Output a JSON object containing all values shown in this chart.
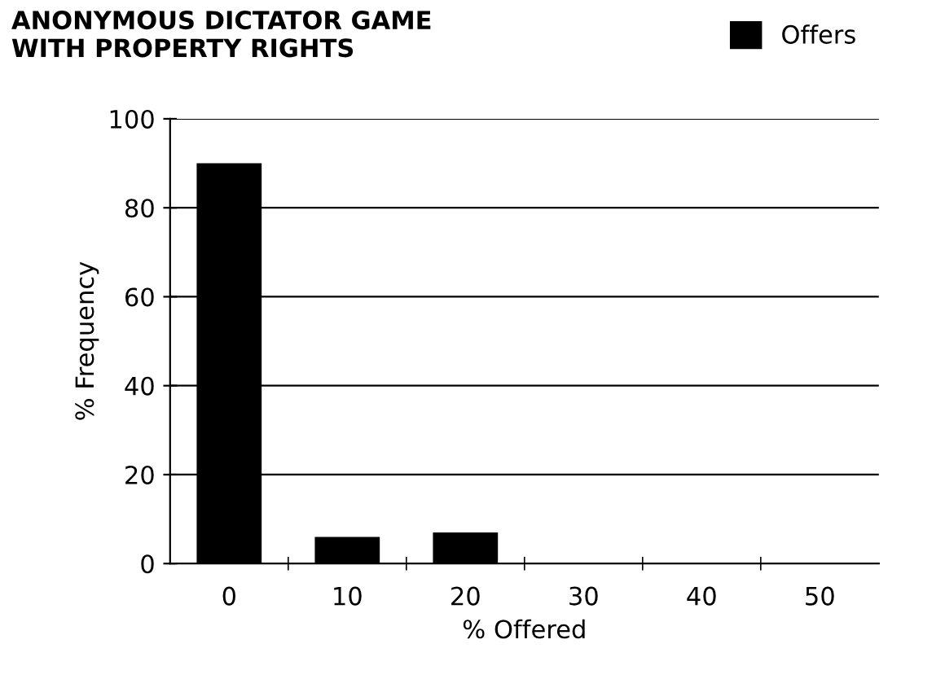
{
  "chart_data": {
    "type": "bar",
    "title": "ANONYMOUS DICTATOR GAME\nWITH PROPERTY RIGHTS",
    "xlabel": "% Offered",
    "ylabel": "% Frequency",
    "categories": [
      "0",
      "10",
      "20",
      "30",
      "40",
      "50"
    ],
    "series": [
      {
        "name": "Offers",
        "color": "#000000",
        "values": [
          90,
          6,
          7,
          0,
          0,
          0
        ]
      }
    ],
    "ylim": [
      0,
      100
    ],
    "yticks": [
      0,
      20,
      40,
      60,
      80,
      100
    ],
    "grid": "y",
    "legend": "top right"
  }
}
